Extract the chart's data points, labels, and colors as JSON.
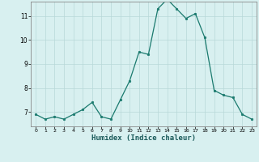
{
  "x": [
    0,
    1,
    2,
    3,
    4,
    5,
    6,
    7,
    8,
    9,
    10,
    11,
    12,
    13,
    14,
    15,
    16,
    17,
    18,
    19,
    20,
    21,
    22,
    23
  ],
  "y": [
    6.9,
    6.7,
    6.8,
    6.7,
    6.9,
    7.1,
    7.4,
    6.8,
    6.7,
    7.5,
    8.3,
    9.5,
    9.4,
    11.3,
    11.7,
    11.3,
    10.9,
    11.1,
    10.1,
    7.9,
    7.7,
    7.6,
    6.9,
    6.7
  ],
  "xlabel": "Humidex (Indice chaleur)",
  "xlim": [
    -0.5,
    23.5
  ],
  "ylim": [
    6.4,
    11.6
  ],
  "yticks": [
    7,
    8,
    9,
    10,
    11
  ],
  "xticks": [
    0,
    1,
    2,
    3,
    4,
    5,
    6,
    7,
    8,
    9,
    10,
    11,
    12,
    13,
    14,
    15,
    16,
    17,
    18,
    19,
    20,
    21,
    22,
    23
  ],
  "line_color": "#1a7a6e",
  "marker": "o",
  "marker_size": 1.8,
  "background_color": "#d8f0f0",
  "grid_color": "#b8d8d8",
  "spine_color": "#888888"
}
